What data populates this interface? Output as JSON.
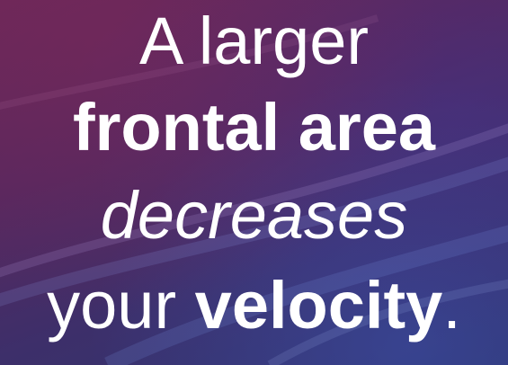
{
  "slide": {
    "line1": "A larger",
    "line2": "frontal area",
    "line3": "decreases",
    "line4_plain": "your ",
    "line4_bold": "velocity",
    "line4_end": "."
  },
  "colors": {
    "text": "#ffffff",
    "background_top": "#6a2858",
    "background_bottom": "#2f3470"
  }
}
